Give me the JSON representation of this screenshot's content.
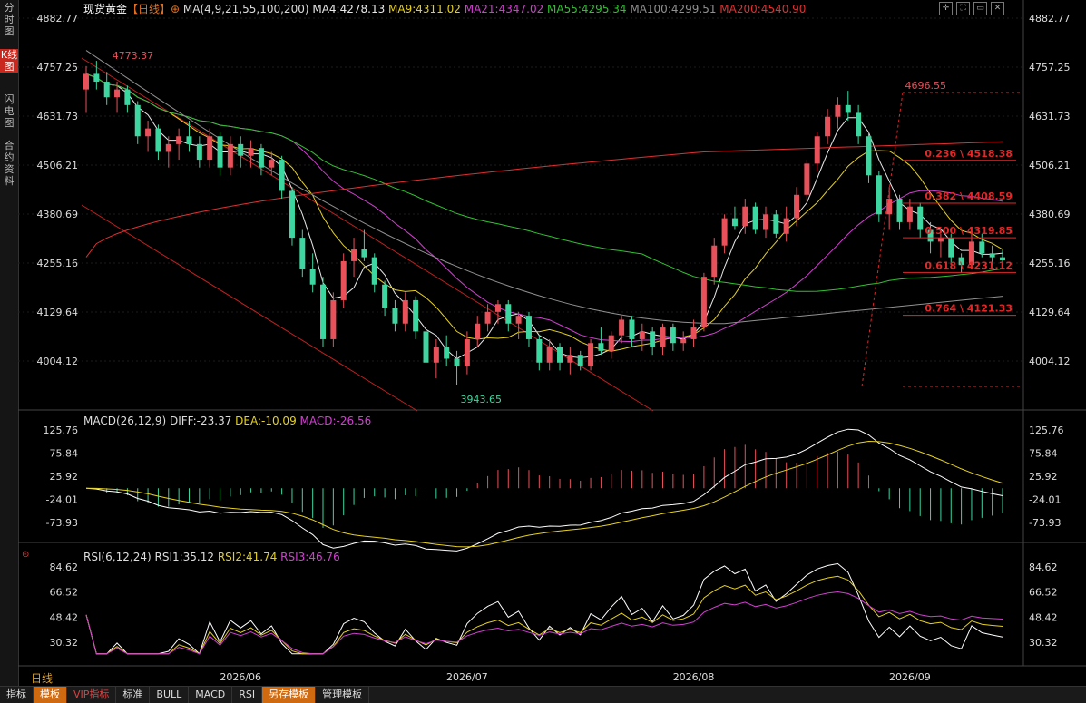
{
  "sidebar": {
    "tabs": [
      {
        "label": "分时图",
        "active": false
      },
      {
        "label": "K线图",
        "active": true
      },
      {
        "label": "闪电图",
        "active": false
      },
      {
        "label": "合约资料",
        "active": false
      }
    ]
  },
  "header": {
    "instrument": "现货黄金",
    "period": "【日线】",
    "plus": "⊕",
    "ma_label": "MA(4,9,21,55,100,200)",
    "ma_values": [
      {
        "text": "MA4:4278.13",
        "color": "#e8e8e8"
      },
      {
        "text": "MA9:4311.02",
        "color": "#e5d022"
      },
      {
        "text": "MA21:4347.02",
        "color": "#d040d0"
      },
      {
        "text": "MA55:4295.34",
        "color": "#30c030"
      },
      {
        "text": "MA100:4299.51",
        "color": "#909090"
      },
      {
        "text": "MA200:4540.90",
        "color": "#e03030"
      }
    ]
  },
  "price_axis": [
    "4882.77",
    "4757.25",
    "4631.73",
    "4506.21",
    "4380.69",
    "4255.16",
    "4129.64",
    "4004.12"
  ],
  "macd_panel": {
    "label": "MACD(26,12,9)",
    "diff": "DIFF:-23.37",
    "dea": "DEA:-10.09",
    "macd": "MACD:-26.56",
    "axis": [
      "125.76",
      "75.84",
      "25.92",
      "-24.01",
      "-73.93"
    ]
  },
  "rsi_panel": {
    "label": "RSI(6,12,24)",
    "rsi1": "RSI1:35.12",
    "rsi2": "RSI2:41.74",
    "rsi3": "RSI3:46.76",
    "axis": [
      "84.62",
      "66.52",
      "48.42",
      "30.32"
    ]
  },
  "x_axis": {
    "period_label": "日线",
    "months": [
      "2026/06",
      "2026/07",
      "2026/08",
      "2026/09"
    ]
  },
  "bottom_bar": {
    "tabs": [
      {
        "label": "指标",
        "style": "plain"
      },
      {
        "label": "模板",
        "style": "hl"
      },
      {
        "label": "VIP指标",
        "style": "red"
      },
      {
        "label": "标准",
        "style": "plain"
      },
      {
        "label": "BULL",
        "style": "plain"
      },
      {
        "label": "MACD",
        "style": "plain"
      },
      {
        "label": "RSI",
        "style": "plain"
      },
      {
        "label": "另存模板",
        "style": "hl"
      },
      {
        "label": "管理模板",
        "style": "plain"
      }
    ]
  },
  "colors": {
    "up": "#e8505a",
    "down": "#3dd6a0",
    "fib": "#e02828"
  },
  "chart_data": [
    {
      "type": "candlestick",
      "title": "现货黄金 日线",
      "ylim": [
        3943.65,
        4882.77
      ],
      "annotations": [
        {
          "label": "4773.37",
          "index": 2,
          "value": 4773.37,
          "kind": "high"
        },
        {
          "label": "4696.55",
          "index": 79,
          "value": 4696.55,
          "kind": "high"
        },
        {
          "label": "3943.65",
          "index": 36,
          "value": 3943.65,
          "kind": "low"
        }
      ],
      "fibonacci": [
        {
          "ratio": "0.236",
          "value": 4518.38,
          "label": "0.236 \\ 4518.38"
        },
        {
          "ratio": "0.382",
          "value": 4408.59,
          "label": "0.382 \\ 4408.59"
        },
        {
          "ratio": "0.500",
          "value": 4319.85,
          "label": "0.500 \\ 4319.85"
        },
        {
          "ratio": "0.618",
          "value": 4231.12,
          "label": "0.618 \\ 4231.12"
        },
        {
          "ratio": "0.764",
          "value": 4121.33,
          "label": "0.764 \\ 4121.33"
        }
      ],
      "candles_ohlc": [
        [
          4700,
          4760,
          4640,
          4740
        ],
        [
          4740,
          4773.37,
          4700,
          4720
        ],
        [
          4720,
          4745,
          4660,
          4680
        ],
        [
          4680,
          4720,
          4640,
          4700
        ],
        [
          4700,
          4710,
          4640,
          4660
        ],
        [
          4660,
          4670,
          4560,
          4580
        ],
        [
          4580,
          4620,
          4540,
          4600
        ],
        [
          4600,
          4610,
          4520,
          4540
        ],
        [
          4540,
          4580,
          4500,
          4560
        ],
        [
          4560,
          4600,
          4520,
          4580
        ],
        [
          4580,
          4620,
          4540,
          4560
        ],
        [
          4560,
          4580,
          4500,
          4520
        ],
        [
          4520,
          4600,
          4500,
          4580
        ],
        [
          4580,
          4590,
          4480,
          4500
        ],
        [
          4500,
          4580,
          4480,
          4560
        ],
        [
          4560,
          4580,
          4500,
          4530
        ],
        [
          4530,
          4570,
          4500,
          4550
        ],
        [
          4550,
          4560,
          4480,
          4500
        ],
        [
          4500,
          4540,
          4480,
          4520
        ],
        [
          4520,
          4530,
          4420,
          4440
        ],
        [
          4440,
          4450,
          4300,
          4320
        ],
        [
          4320,
          4340,
          4220,
          4240
        ],
        [
          4240,
          4280,
          4180,
          4200
        ],
        [
          4200,
          4220,
          4040,
          4060
        ],
        [
          4060,
          4180,
          4040,
          4160
        ],
        [
          4160,
          4280,
          4140,
          4260
        ],
        [
          4260,
          4320,
          4220,
          4290
        ],
        [
          4290,
          4340,
          4260,
          4270
        ],
        [
          4270,
          4280,
          4180,
          4200
        ],
        [
          4200,
          4210,
          4120,
          4140
        ],
        [
          4140,
          4160,
          4080,
          4100
        ],
        [
          4100,
          4180,
          4080,
          4160
        ],
        [
          4160,
          4170,
          4060,
          4080
        ],
        [
          4080,
          4090,
          3980,
          4000
        ],
        [
          4000,
          4060,
          3960,
          4040
        ],
        [
          4040,
          4070,
          3990,
          4010
        ],
        [
          4010,
          4030,
          3943.65,
          3990
        ],
        [
          3990,
          4080,
          3970,
          4060
        ],
        [
          4060,
          4120,
          4040,
          4100
        ],
        [
          4100,
          4150,
          4080,
          4130
        ],
        [
          4130,
          4160,
          4100,
          4150
        ],
        [
          4150,
          4160,
          4080,
          4100
        ],
        [
          4100,
          4130,
          4060,
          4120
        ],
        [
          4120,
          4130,
          4040,
          4060
        ],
        [
          4060,
          4070,
          3980,
          4000
        ],
        [
          4000,
          4060,
          3980,
          4040
        ],
        [
          4040,
          4050,
          3980,
          4000
        ],
        [
          4000,
          4040,
          3970,
          4020
        ],
        [
          4020,
          4030,
          3980,
          3990
        ],
        [
          3990,
          4060,
          3980,
          4050
        ],
        [
          4050,
          4090,
          4020,
          4030
        ],
        [
          4030,
          4080,
          4010,
          4070
        ],
        [
          4070,
          4120,
          4050,
          4110
        ],
        [
          4110,
          4120,
          4040,
          4060
        ],
        [
          4060,
          4100,
          4030,
          4080
        ],
        [
          4080,
          4090,
          4020,
          4040
        ],
        [
          4040,
          4100,
          4020,
          4090
        ],
        [
          4090,
          4100,
          4030,
          4050
        ],
        [
          4050,
          4080,
          4030,
          4060
        ],
        [
          4060,
          4110,
          4040,
          4090
        ],
        [
          4090,
          4230,
          4080,
          4220
        ],
        [
          4220,
          4320,
          4200,
          4300
        ],
        [
          4300,
          4380,
          4280,
          4370
        ],
        [
          4370,
          4400,
          4340,
          4350
        ],
        [
          4350,
          4420,
          4330,
          4400
        ],
        [
          4400,
          4410,
          4330,
          4340
        ],
        [
          4340,
          4400,
          4320,
          4380
        ],
        [
          4380,
          4390,
          4320,
          4330
        ],
        [
          4330,
          4400,
          4310,
          4370
        ],
        [
          4370,
          4450,
          4350,
          4430
        ],
        [
          4430,
          4520,
          4410,
          4510
        ],
        [
          4510,
          4590,
          4490,
          4580
        ],
        [
          4580,
          4650,
          4560,
          4630
        ],
        [
          4630,
          4680,
          4600,
          4660
        ],
        [
          4660,
          4696.55,
          4620,
          4640
        ],
        [
          4640,
          4660,
          4560,
          4580
        ],
        [
          4580,
          4590,
          4460,
          4480
        ],
        [
          4480,
          4490,
          4360,
          4380
        ],
        [
          4380,
          4450,
          4340,
          4420
        ],
        [
          4420,
          4430,
          4340,
          4360
        ],
        [
          4360,
          4420,
          4340,
          4400
        ],
        [
          4400,
          4410,
          4320,
          4340
        ],
        [
          4340,
          4360,
          4280,
          4310
        ],
        [
          4310,
          4330,
          4270,
          4320
        ],
        [
          4320,
          4330,
          4250,
          4270
        ],
        [
          4270,
          4280,
          4230,
          4250
        ],
        [
          4250,
          4340,
          4240,
          4310
        ],
        [
          4310,
          4330,
          4270,
          4280
        ],
        [
          4280,
          4300,
          4250,
          4270
        ],
        [
          4270,
          4290,
          4250,
          4262
        ]
      ]
    },
    {
      "type": "macd",
      "title": "MACD(26,12,9)",
      "series": [
        {
          "name": "DIFF",
          "last": -23.37
        },
        {
          "name": "DEA",
          "last": -10.09
        },
        {
          "name": "MACD",
          "last": -26.56
        }
      ],
      "ylim": [
        -73.93,
        125.76
      ]
    },
    {
      "type": "rsi",
      "title": "RSI(6,12,24)",
      "series": [
        {
          "name": "RSI1",
          "last": 35.12
        },
        {
          "name": "RSI2",
          "last": 41.74
        },
        {
          "name": "RSI3",
          "last": 46.76
        }
      ],
      "ylim": [
        30.32,
        84.62
      ]
    }
  ]
}
